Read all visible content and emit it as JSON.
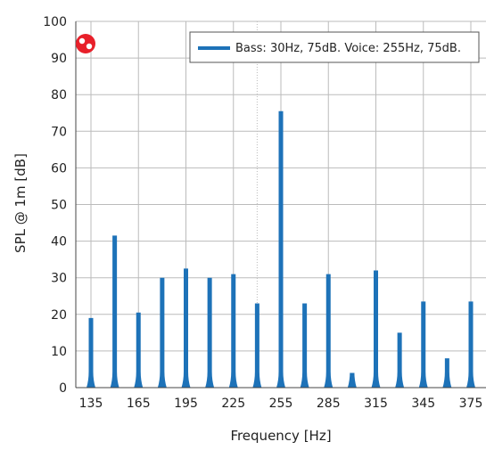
{
  "chart_data": {
    "type": "bar",
    "title": "",
    "xlabel": "Frequency [Hz]",
    "ylabel": "SPL @ 1m [dB]",
    "ylim": [
      0,
      100
    ],
    "yticks": [
      0,
      10,
      20,
      30,
      40,
      50,
      60,
      70,
      80,
      90,
      100
    ],
    "xlim": [
      128,
      380
    ],
    "xticks": [
      135,
      165,
      195,
      225,
      255,
      285,
      315,
      345,
      375
    ],
    "grid": true,
    "legend_position": "top-right",
    "colors": {
      "series": "#1d72b8",
      "grid": "#bbbbbb",
      "logo": "#e8202a"
    },
    "series": [
      {
        "name": "Bass: 30Hz, 75dB. Voice: 255Hz, 75dB.",
        "x": [
          135,
          150,
          165,
          180,
          195,
          210,
          225,
          240,
          255,
          270,
          285,
          300,
          315,
          330,
          345,
          360,
          375
        ],
        "values": [
          19,
          41.5,
          20.5,
          30,
          32.5,
          30,
          31,
          23,
          75.5,
          23,
          31,
          4,
          32,
          15,
          23.5,
          8,
          23.5
        ]
      }
    ]
  }
}
